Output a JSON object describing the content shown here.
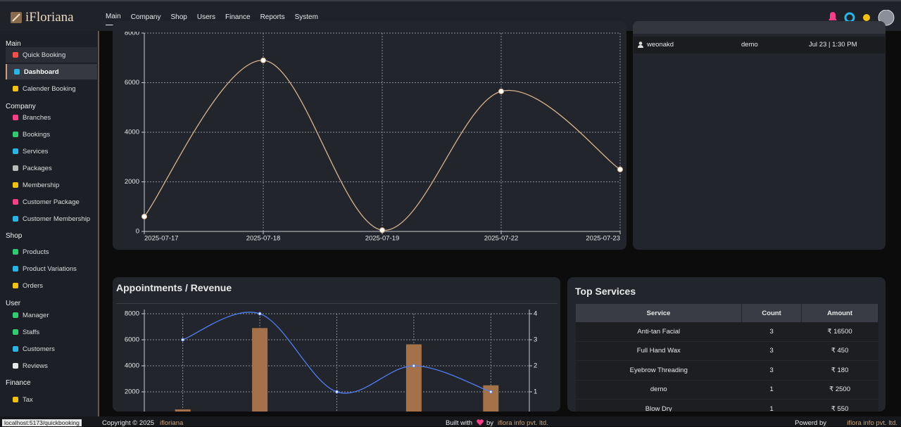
{
  "brand": "iFloriana",
  "nav": [
    "Main",
    "Company",
    "Shop",
    "Users",
    "Finance",
    "Reports",
    "System"
  ],
  "sidebar": [
    {
      "section": "Main",
      "items": [
        "Quick Booking",
        "Dashboard",
        "Calender Booking"
      ]
    },
    {
      "section": "Company",
      "items": [
        "Branches",
        "Bookings",
        "Services",
        "Packages",
        "Membership",
        "Customer Package",
        "Customer Membership"
      ]
    },
    {
      "section": "Shop",
      "items": [
        "Products",
        "Product Variations",
        "Orders"
      ]
    },
    {
      "section": "User",
      "items": [
        "Manager",
        "Staffs",
        "Customers",
        "Reviews"
      ]
    },
    {
      "section": "Finance",
      "items": [
        "Tax"
      ]
    }
  ],
  "logins": {
    "rows": [
      [
        "weonakd",
        "demo",
        "Jul 23 | 1:30 PM"
      ]
    ]
  },
  "chart_data": [
    {
      "type": "line",
      "categories": [
        "2025-07-17",
        "2025-07-18",
        "2025-07-19",
        "2025-07-22",
        "2025-07-23"
      ],
      "values": [
        600,
        6900,
        50,
        5650,
        2500
      ],
      "color": "#d8b48e",
      "ylim": [
        0,
        8000
      ],
      "yticks": [
        0,
        2000,
        4000,
        6000,
        8000
      ],
      "grid": true
    },
    {
      "type": "bar-line",
      "title": "Appointments / Revenue",
      "categories": [
        null,
        null,
        null,
        null,
        null
      ],
      "series": [
        {
          "type": "bar",
          "color": "#a47148",
          "values": [
            650,
            6900,
            0,
            5650,
            2500
          ]
        },
        {
          "type": "line",
          "color": "#4f7ef7",
          "axis": "y2",
          "values": [
            3,
            4,
            1,
            2,
            1
          ]
        }
      ],
      "ylim": [
        0,
        8000
      ],
      "yticks": [
        2000,
        4000,
        6000,
        8000
      ],
      "y2lim": [
        0,
        4
      ],
      "y2ticks": [
        1,
        2,
        3,
        4
      ],
      "grid": true
    }
  ],
  "top_services": {
    "title": "Top Services",
    "columns": [
      "Service",
      "Count",
      "Amount"
    ],
    "rows": [
      [
        "Anti-tan Facial",
        "3",
        "₹ 16500"
      ],
      [
        "Full Hand Wax",
        "3",
        "₹ 450"
      ],
      [
        "Eyebrow Threading",
        "3",
        "₹ 180"
      ],
      [
        "demo",
        "1",
        "₹ 2500"
      ],
      [
        "Blow Dry",
        "1",
        "₹ 550"
      ]
    ]
  },
  "footer": {
    "copyright": "Copyright © 2025",
    "company": "ifloriana",
    "built": "Built with",
    "by": "by",
    "builder": "iflora info pvt. ltd.",
    "powered": "Powerd by",
    "powered_company": "iflora info pvt. ltd."
  },
  "status_url": "localhost:5173/quickbooking"
}
